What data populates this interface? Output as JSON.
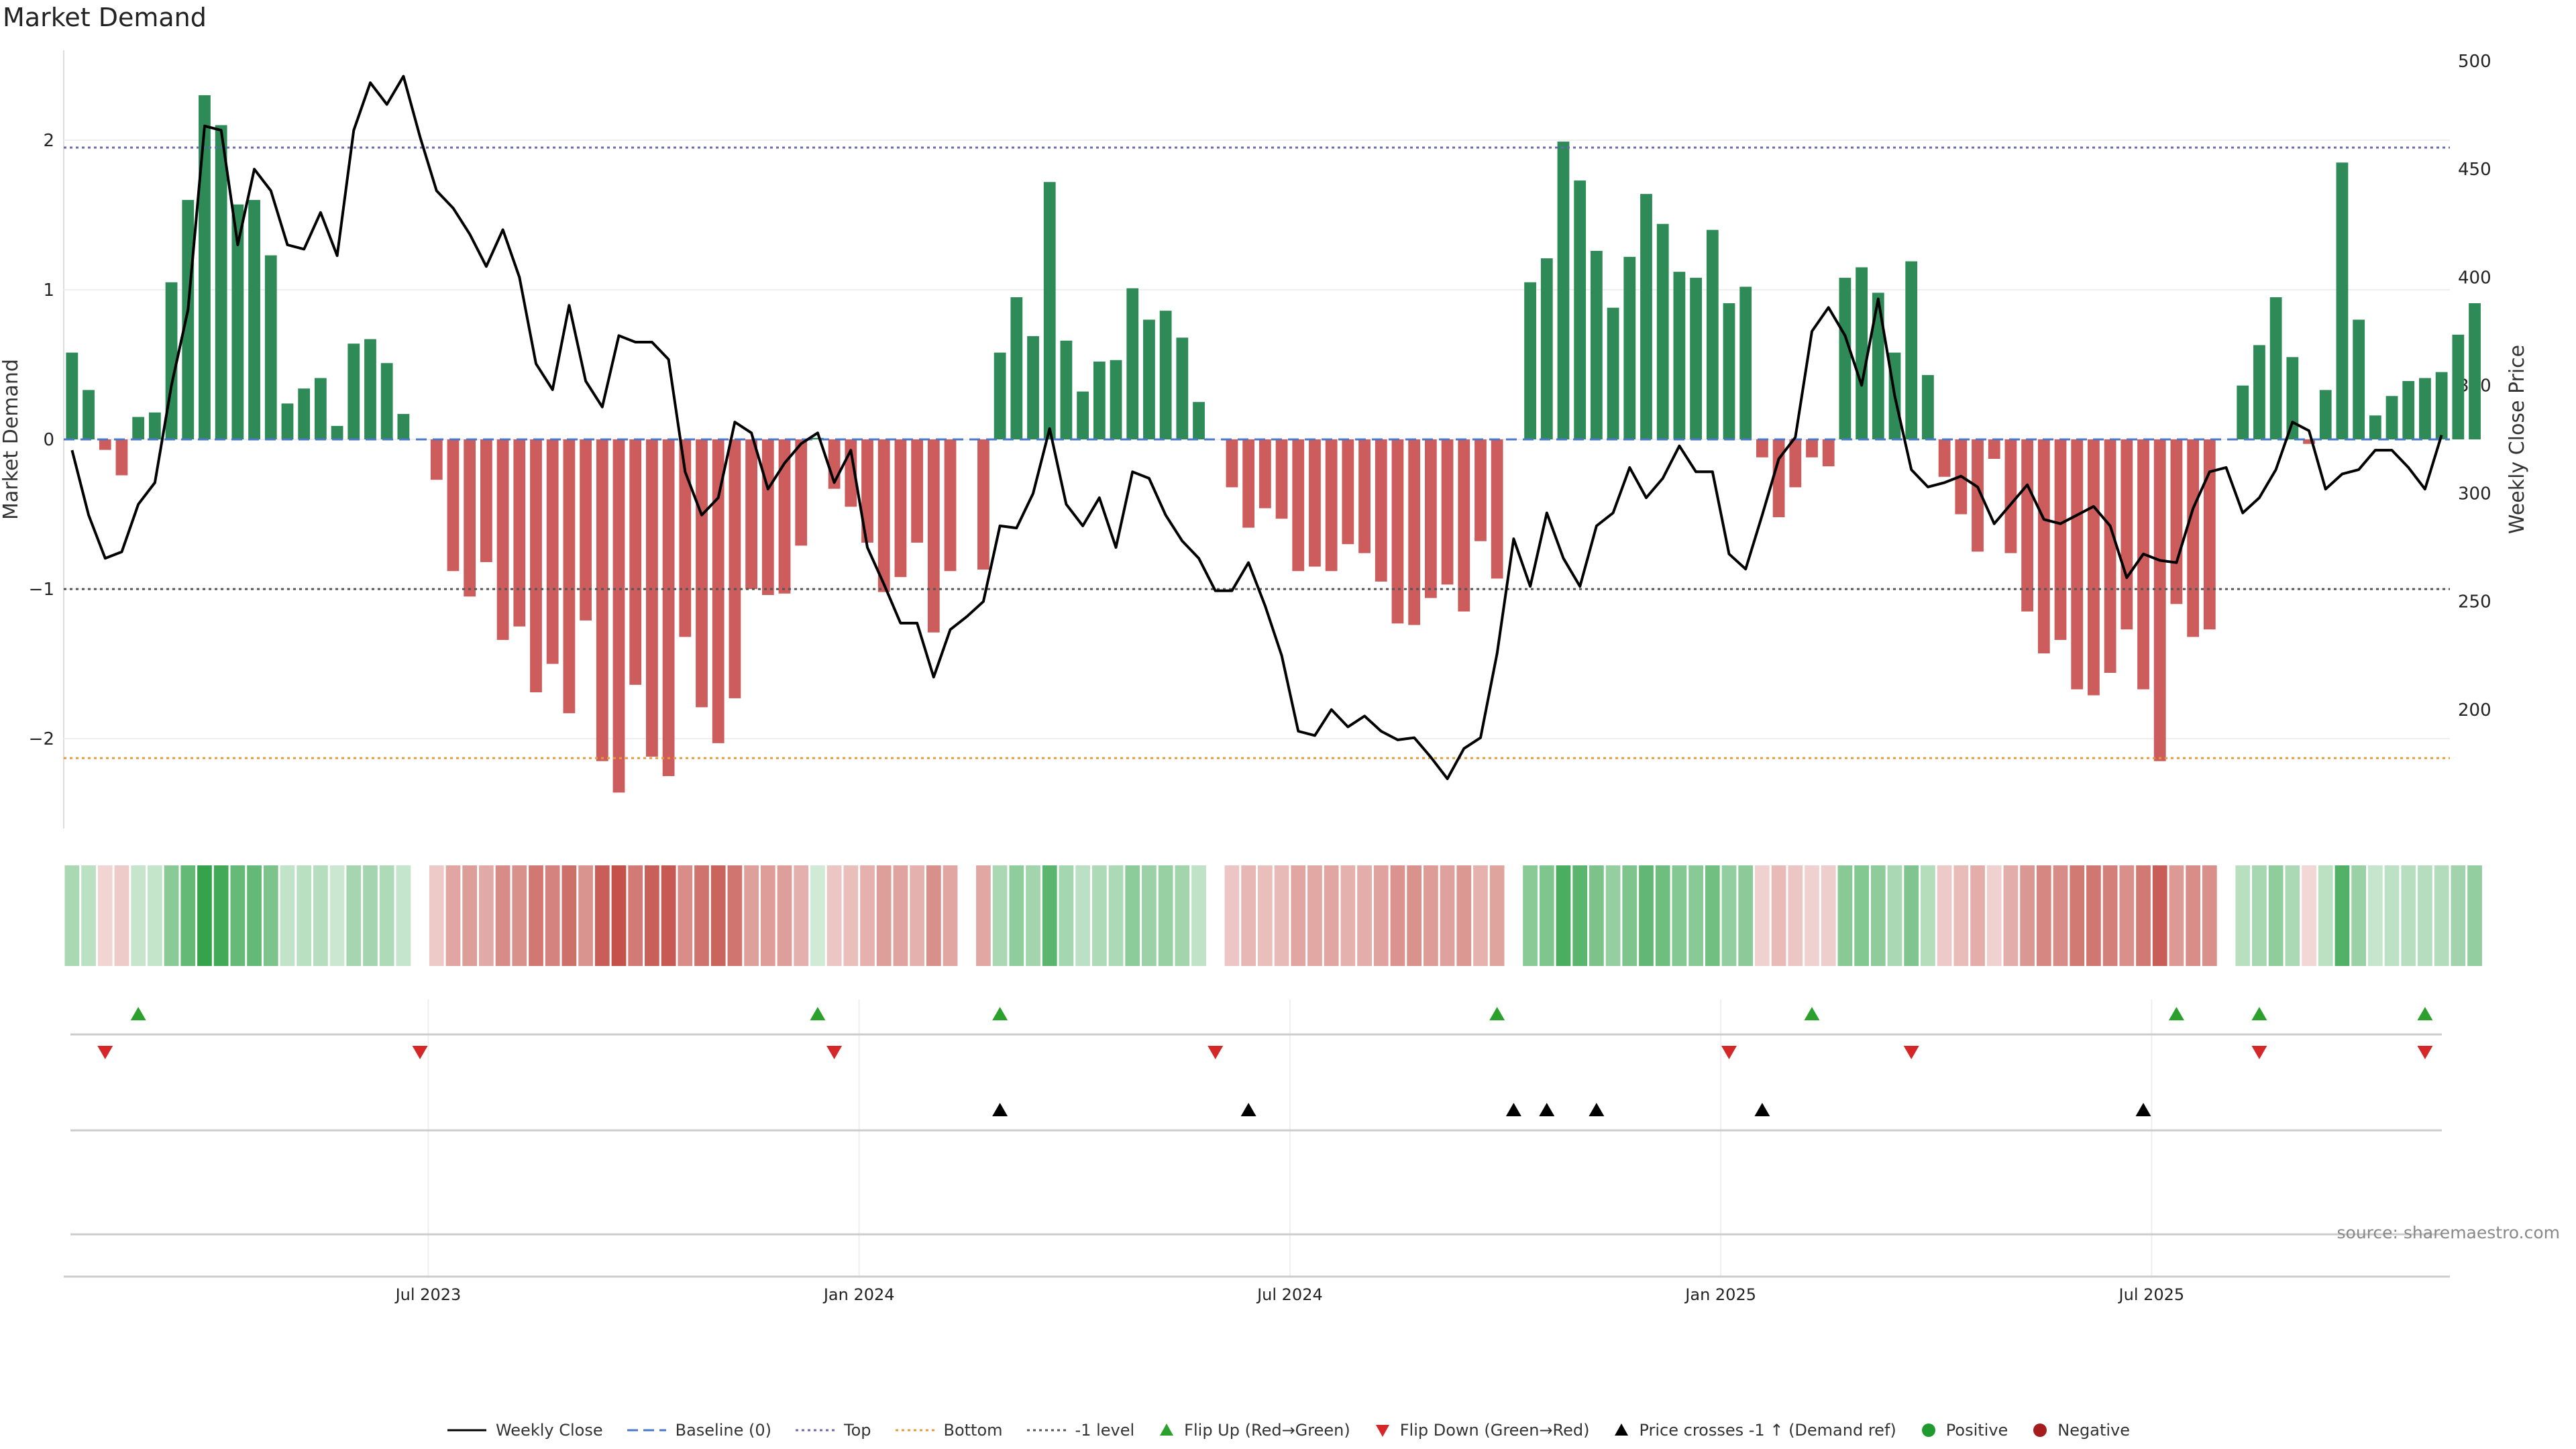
{
  "chart_data": {
    "type": "bar",
    "title": "Market Demand",
    "ylabel_left": "Market Demand",
    "ylabel_right": "Weekly Close Price",
    "ylim_left": [
      -2.6,
      2.6
    ],
    "ylim_right": [
      145,
      505
    ],
    "left_ticks": [
      2,
      1,
      0,
      -1,
      -2
    ],
    "left_tick_labels": [
      "2",
      "1",
      "0",
      "−1",
      "−2"
    ],
    "right_ticks": [
      500,
      450,
      400,
      350,
      300,
      250,
      200
    ],
    "x_tick_labels": [
      "Jul 2023",
      "Jan 2024",
      "Jul 2024",
      "Jan 2025",
      "Jul 2025"
    ],
    "x_tick_week_index": [
      22,
      48,
      74,
      100,
      126
    ],
    "reference_lines": {
      "top": 1.95,
      "bottom": -2.13,
      "minus_one": -1.0,
      "baseline": 0
    },
    "weeks": 144,
    "demand": [
      0.58,
      0.33,
      -0.07,
      -0.24,
      0.15,
      0.18,
      1.05,
      1.6,
      2.3,
      2.1,
      1.57,
      1.6,
      1.23,
      0.24,
      0.34,
      0.41,
      0.09,
      0.64,
      0.67,
      0.51,
      0.17,
      0.0,
      -0.27,
      -0.88,
      -1.05,
      -0.82,
      -1.34,
      -1.25,
      -1.69,
      -1.5,
      -1.83,
      -1.21,
      -2.15,
      -2.36,
      -1.64,
      -2.12,
      -2.25,
      -1.32,
      -1.79,
      -2.03,
      -1.73,
      -1.0,
      -1.04,
      -1.03,
      -0.71,
      0.01,
      -0.33,
      -0.45,
      -0.69,
      -1.02,
      -0.92,
      -0.69,
      -1.29,
      -0.88,
      0.0,
      -0.87,
      0.58,
      0.95,
      0.69,
      1.72,
      0.66,
      0.32,
      0.52,
      0.53,
      1.01,
      0.8,
      0.86,
      0.68,
      0.25,
      0.0,
      -0.32,
      -0.59,
      -0.46,
      -0.53,
      -0.88,
      -0.85,
      -0.88,
      -0.7,
      -0.76,
      -0.95,
      -1.23,
      -1.24,
      -1.06,
      -0.97,
      -1.15,
      -0.68,
      -0.93,
      0.0,
      1.05,
      1.21,
      1.99,
      1.73,
      1.26,
      0.88,
      1.22,
      1.64,
      1.44,
      1.12,
      1.08,
      1.4,
      0.91,
      1.02,
      -0.12,
      -0.52,
      -0.32,
      -0.12,
      -0.18,
      1.08,
      1.15,
      0.98,
      0.58,
      1.19,
      0.43,
      -0.25,
      -0.5,
      -0.75,
      -0.13,
      -0.76,
      -1.15,
      -1.43,
      -1.34,
      -1.67,
      -1.71,
      -1.56,
      -1.27,
      -1.67,
      -2.15,
      -1.1,
      -1.32,
      -1.27,
      0.0,
      0.36,
      0.63,
      0.95,
      0.55,
      -0.03,
      0.33,
      1.85,
      0.8,
      0.16,
      0.29,
      0.39,
      0.41,
      0.45,
      0.7,
      0.91
    ],
    "weekly_close": [
      320,
      290,
      270,
      273,
      295,
      305,
      350,
      385,
      470,
      468,
      415,
      450,
      440,
      415,
      413,
      430,
      410,
      468,
      490,
      480,
      493,
      465,
      440,
      432,
      420,
      405,
      422,
      400,
      360,
      348,
      387,
      352,
      340,
      373,
      370,
      370,
      362,
      310,
      290,
      298,
      333,
      328,
      302,
      314,
      323,
      328,
      305,
      320,
      275,
      258,
      240,
      240,
      215,
      237,
      243,
      250,
      285,
      284,
      300,
      330,
      295,
      285,
      298,
      275,
      310,
      307,
      290,
      278,
      270,
      255,
      255,
      268,
      248,
      225,
      190,
      188,
      200,
      192,
      197,
      190,
      186,
      187,
      178,
      168,
      182,
      187,
      226,
      279,
      257,
      291,
      270,
      257,
      285,
      291,
      312,
      298,
      307,
      322,
      310,
      310,
      272,
      265,
      290,
      316,
      326,
      375,
      386,
      373,
      350,
      390,
      345,
      311,
      303,
      305,
      308,
      303,
      286,
      295,
      304,
      288,
      286,
      290,
      294,
      285,
      261,
      272,
      269,
      268,
      293,
      310,
      312,
      291,
      298,
      311,
      333,
      329,
      302,
      309,
      311,
      320,
      320,
      312,
      302,
      327
    ],
    "strip_shade_levels": [
      -0.8,
      -0.55,
      -0.3,
      0.3,
      0.55,
      0.8,
      1.05
    ],
    "flip_up_weeks": [
      4,
      45,
      56,
      86,
      105,
      127,
      132,
      142
    ],
    "flip_down_weeks": [
      2,
      21,
      46,
      69,
      100,
      111,
      132,
      142
    ],
    "price_cross_weeks": [
      56,
      71,
      87,
      89,
      92,
      102,
      125
    ],
    "series_colors": {
      "positive": "#2e8b57",
      "negative": "#cd5c5c",
      "weekly_close": "#000000",
      "top": "#6a6ab0",
      "bottom": "#e89a3a",
      "minus_one": "#555555",
      "baseline": "#4a77c9",
      "flip_up": "#2ca02c",
      "flip_down": "#d62728",
      "price_cross": "#000000",
      "positive_dot": "#1f9a2f",
      "negative_dot": "#a51c1c"
    }
  },
  "source_text": "source: sharemaestro.com",
  "legend": [
    {
      "label": "Weekly Close",
      "icon": "solid-line",
      "color": "#000000"
    },
    {
      "label": "Baseline (0)",
      "icon": "dashed-line",
      "color": "#4a77c9"
    },
    {
      "label": "Top",
      "icon": "dotted-line",
      "color": "#6a6ab0"
    },
    {
      "label": "Bottom",
      "icon": "dotted-line",
      "color": "#e89a3a"
    },
    {
      "label": "-1 level",
      "icon": "dotted-line",
      "color": "#555555"
    },
    {
      "label": "Flip Up (Red→Green)",
      "icon": "triangle-up",
      "color": "#2ca02c"
    },
    {
      "label": "Flip Down (Green→Red)",
      "icon": "triangle-down",
      "color": "#d62728"
    },
    {
      "label": "Price crosses -1 ↑ (Demand ref)",
      "icon": "triangle-up",
      "color": "#000000"
    },
    {
      "label": "Positive",
      "icon": "dot",
      "color": "#1f9a2f"
    },
    {
      "label": "Negative",
      "icon": "dot",
      "color": "#a51c1c"
    }
  ]
}
